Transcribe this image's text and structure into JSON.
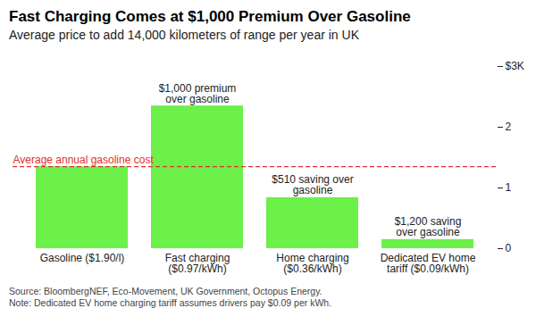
{
  "chart_data": {
    "type": "bar",
    "title": "Fast Charging Comes at $1,000 Premium Over Gasoline",
    "subtitle": "Average price to add 14,000 kilometers of range per year in UK",
    "categories": [
      "Gasoline ($1.90/l)",
      "Fast charging\n($0.97/kWh)",
      "Home charging\n($0.36/kWh)",
      "Dedicated EV home\ntariff ($0.09/kWh)"
    ],
    "values": [
      1.35,
      2.35,
      0.84,
      0.15
    ],
    "color": "#6cf04a",
    "ylim": [
      0,
      3
    ],
    "yticks": [
      0,
      1,
      2,
      {
        "value": 3,
        "label": "$3K"
      }
    ],
    "grid": false,
    "reference_line": {
      "value": 1.35,
      "label": "Average annual gasoline cost"
    },
    "annotations": [
      {
        "category": "Fast charging\n($0.97/kWh)",
        "text": "$1,000 premium\nover gasoline"
      },
      {
        "category": "Home charging\n($0.36/kWh)",
        "text": "$510 saving over\ngasoline"
      },
      {
        "category": "Dedicated EV home\ntariff ($0.09/kWh)",
        "text": "$1,200 saving\nover gasoline"
      }
    ],
    "source": "Source: BloombergNEF, Eco-Movement, UK Government, Octopus Energy.",
    "note": "Note: Dedicated EV home charging tariff assumes drivers pay $0.09 per kWh."
  }
}
